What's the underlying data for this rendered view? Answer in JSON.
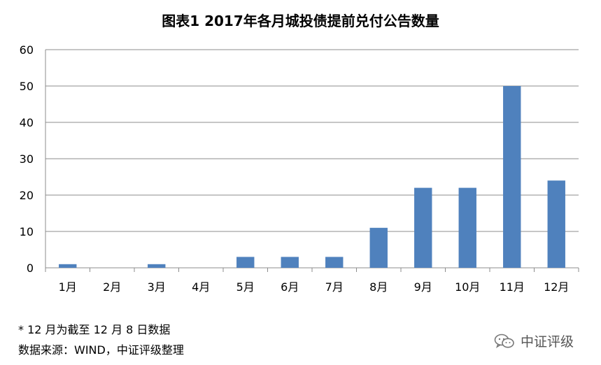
{
  "chart_data": {
    "type": "bar",
    "title": "图表1 2017年各月城投债提前兑付公告数量",
    "categories": [
      "1月",
      "2月",
      "3月",
      "4月",
      "5月",
      "6月",
      "7月",
      "8月",
      "9月",
      "10月",
      "11月",
      "12月"
    ],
    "values": [
      1,
      0,
      1,
      0,
      3,
      3,
      3,
      11,
      22,
      22,
      50,
      24
    ],
    "ylim": [
      0,
      60
    ],
    "yticks": [
      0,
      10,
      20,
      30,
      40,
      50,
      60
    ],
    "grid": true,
    "legend": "none",
    "bar_color": "#4F81BD"
  },
  "footnotes": {
    "note": "* 12 月为截至 12 月 8 日数据",
    "source": "数据来源：WIND，中证评级整理"
  },
  "brand": {
    "icon": "wechat-icon",
    "name": "中证评级"
  },
  "colors": {
    "grid": "#8c8c8c",
    "axis": "#8c8c8c"
  }
}
